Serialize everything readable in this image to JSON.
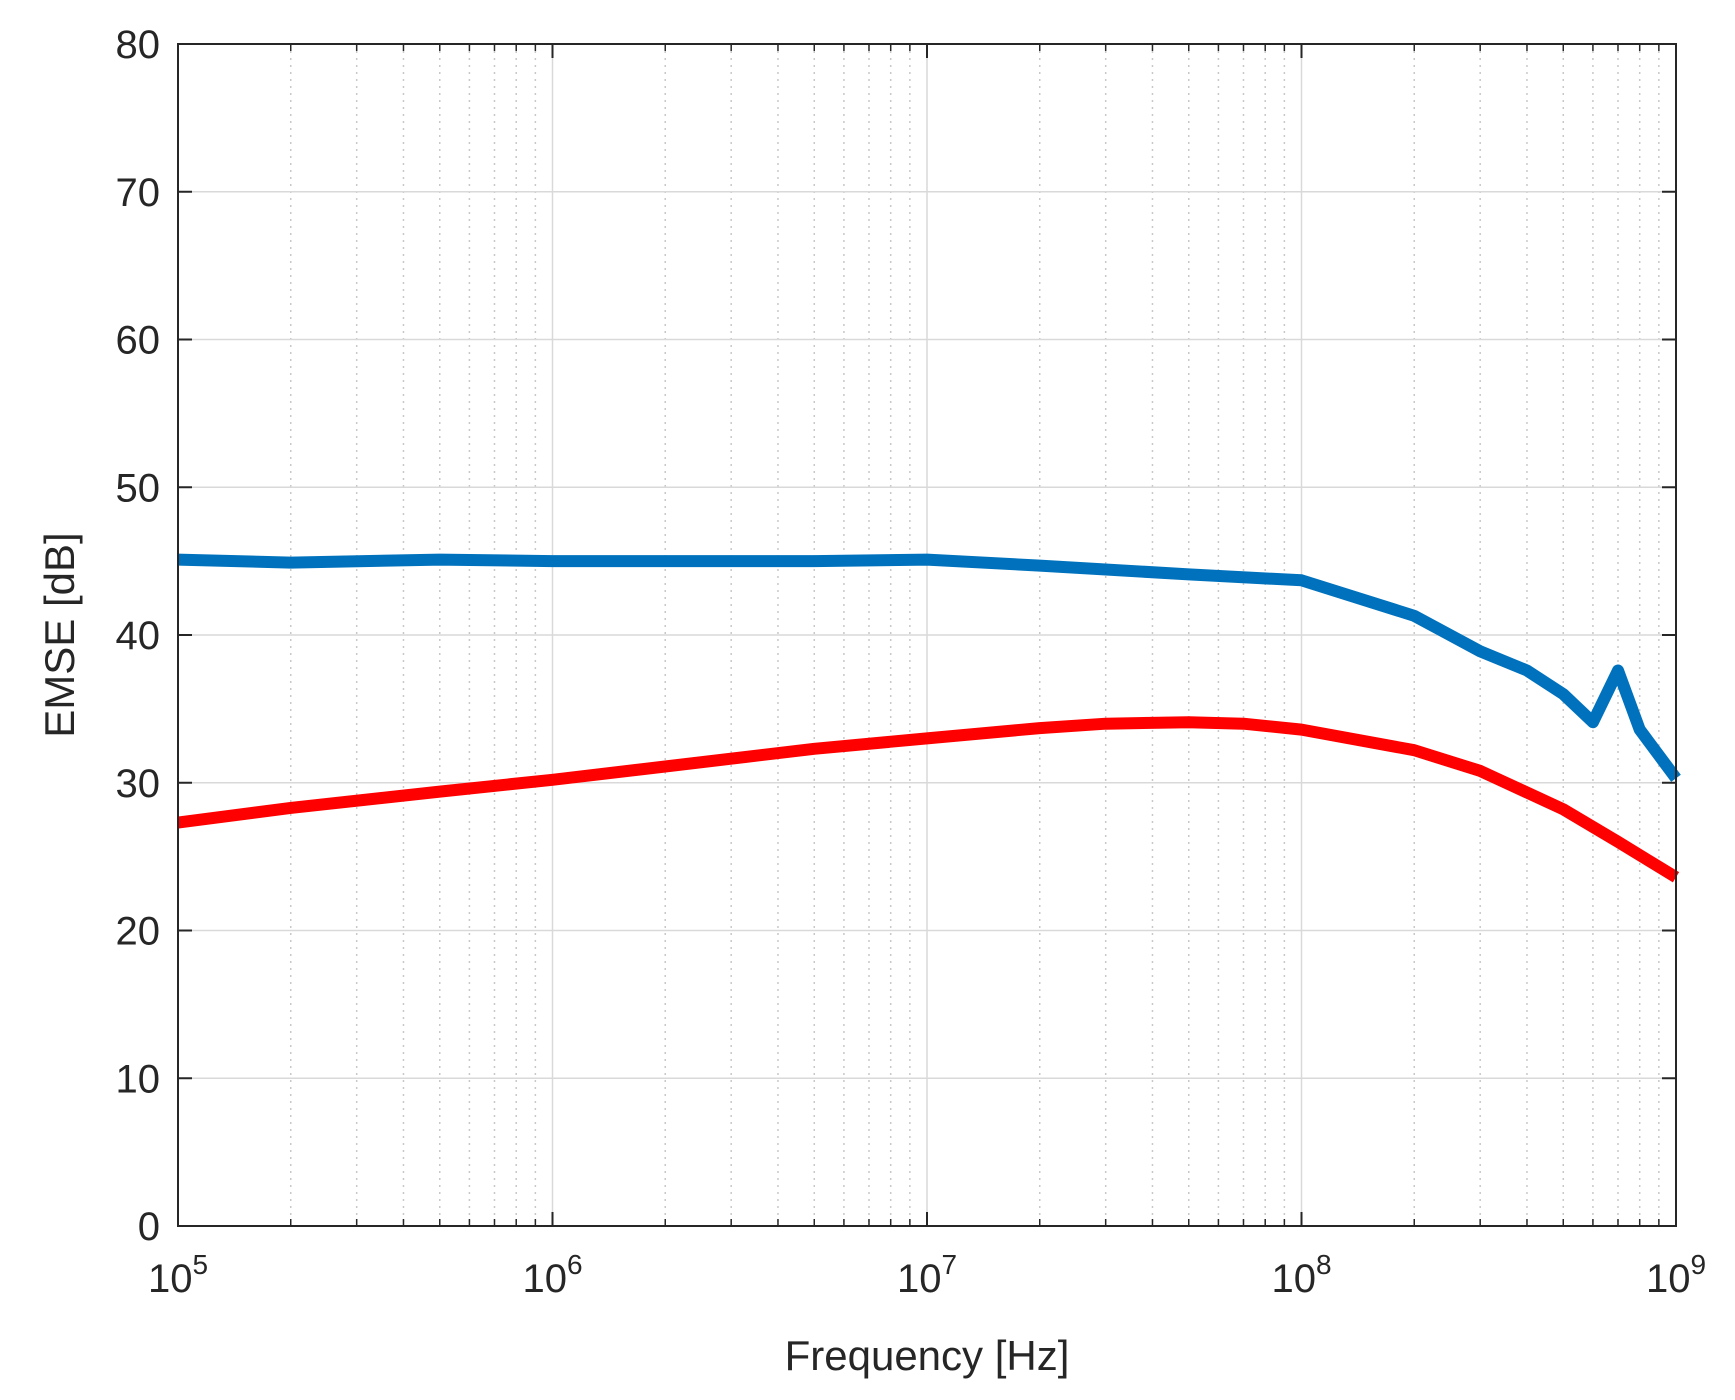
{
  "chart_data": {
    "type": "line",
    "title": "",
    "xlabel": "Frequency [Hz]",
    "ylabel": "EMSE [dB]",
    "xscale": "log",
    "xlim": [
      100000,
      1000000000
    ],
    "ylim": [
      0,
      80
    ],
    "grid": true,
    "x_ticks": [
      {
        "base": "10",
        "exp": "5",
        "value": 100000
      },
      {
        "base": "10",
        "exp": "6",
        "value": 1000000
      },
      {
        "base": "10",
        "exp": "7",
        "value": 10000000
      },
      {
        "base": "10",
        "exp": "8",
        "value": 100000000
      },
      {
        "base": "10",
        "exp": "9",
        "value": 1000000000
      }
    ],
    "y_ticks": [
      "0",
      "10",
      "20",
      "30",
      "40",
      "50",
      "60",
      "70",
      "80"
    ],
    "colors": {
      "grid": "#d9d9d9",
      "axis": "#262626",
      "blue": "#0072bd",
      "red": "#ff0000"
    },
    "series": [
      {
        "name": "blue",
        "color": "#0072bd",
        "x": [
          100000,
          200000,
          500000,
          1000000,
          2000000,
          5000000,
          10000000,
          20000000,
          50000000,
          100000000,
          200000000,
          300000000,
          400000000,
          500000000,
          600000000,
          700000000,
          800000000,
          1000000000
        ],
        "y": [
          45.1,
          44.9,
          45.1,
          45.0,
          45.0,
          45.0,
          45.1,
          44.7,
          44.1,
          43.7,
          41.3,
          38.9,
          37.6,
          36.0,
          34.1,
          37.6,
          33.6,
          30.3
        ]
      },
      {
        "name": "red",
        "color": "#ff0000",
        "x": [
          100000,
          200000,
          500000,
          1000000,
          2000000,
          5000000,
          10000000,
          20000000,
          30000000,
          50000000,
          70000000,
          100000000,
          200000000,
          300000000,
          500000000,
          700000000,
          1000000000
        ],
        "y": [
          27.3,
          28.3,
          29.4,
          30.2,
          31.1,
          32.3,
          33.0,
          33.7,
          34.0,
          34.1,
          34.0,
          33.6,
          32.2,
          30.8,
          28.2,
          26.0,
          23.6
        ]
      }
    ]
  }
}
